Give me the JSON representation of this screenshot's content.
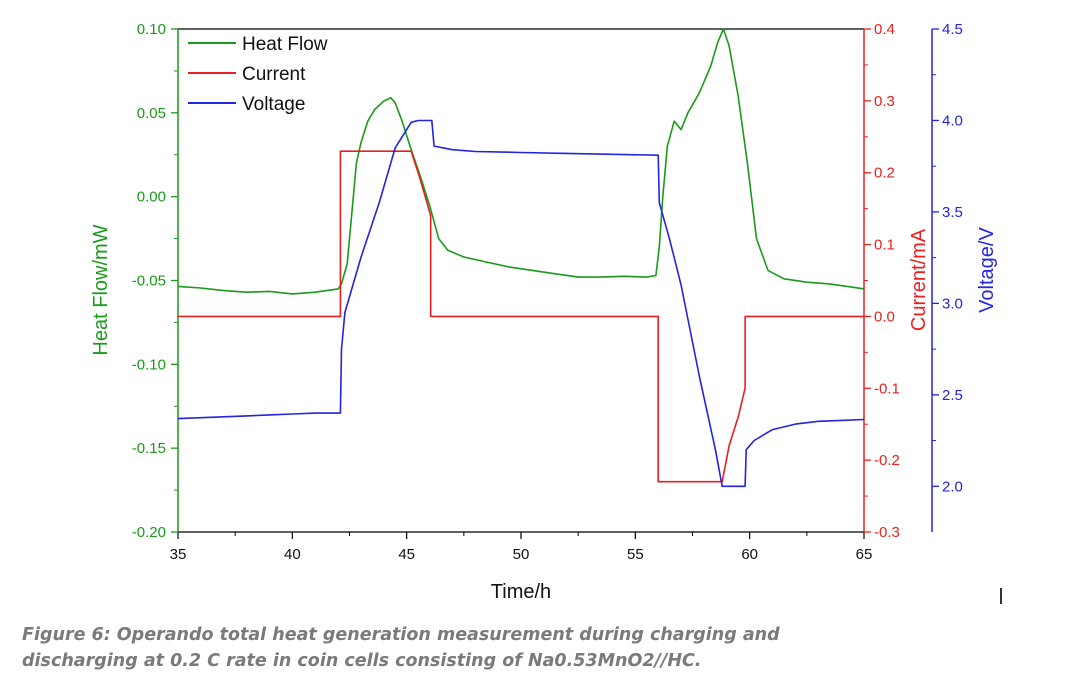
{
  "chart_data": {
    "type": "line",
    "xlabel": "Time/h",
    "x_ticks": [
      "35",
      "40",
      "45",
      "50",
      "55",
      "60",
      "65"
    ],
    "xlim": [
      35,
      65
    ],
    "grid": false,
    "legend_position": "top-left",
    "axes": {
      "left": {
        "label": "Heat Flow/mW",
        "color": "#1a9a1a",
        "lim": [
          -0.2,
          0.1
        ],
        "ticks": [
          "-0.20",
          "-0.15",
          "-0.10",
          "-0.05",
          "0.00",
          "0.05",
          "0.10"
        ]
      },
      "right1": {
        "label": "Current/mA",
        "color": "#e82020",
        "lim": [
          -0.3,
          0.4
        ],
        "ticks": [
          "-0.3",
          "-0.2",
          "-0.1",
          "0.0",
          "0.1",
          "0.2",
          "0.3",
          "0.4"
        ]
      },
      "right2": {
        "label": "Voltage/V",
        "color": "#2323e0",
        "lim": [
          1.75,
          4.5
        ],
        "ticks": [
          "2.0",
          "2.5",
          "3.0",
          "3.5",
          "4.0",
          "4.5"
        ]
      }
    },
    "series": [
      {
        "name": "Heat Flow",
        "axis": "left",
        "color": "#1a9a1a",
        "points": [
          [
            35,
            -0.0535
          ],
          [
            36,
            -0.0545
          ],
          [
            37,
            -0.056
          ],
          [
            38,
            -0.057
          ],
          [
            39,
            -0.0565
          ],
          [
            40,
            -0.058
          ],
          [
            41,
            -0.057
          ],
          [
            42,
            -0.055
          ],
          [
            42.15,
            -0.052
          ],
          [
            42.4,
            -0.04
          ],
          [
            42.6,
            -0.01
          ],
          [
            42.8,
            0.02
          ],
          [
            43,
            0.032
          ],
          [
            43.3,
            0.045
          ],
          [
            43.6,
            0.052
          ],
          [
            44,
            0.057
          ],
          [
            44.3,
            0.059
          ],
          [
            44.5,
            0.056
          ],
          [
            44.8,
            0.045
          ],
          [
            45.2,
            0.028
          ],
          [
            45.6,
            0.012
          ],
          [
            46,
            -0.005
          ],
          [
            46.4,
            -0.025
          ],
          [
            46.8,
            -0.032
          ],
          [
            47.5,
            -0.036
          ],
          [
            48.5,
            -0.039
          ],
          [
            49.5,
            -0.042
          ],
          [
            50.5,
            -0.044
          ],
          [
            51.5,
            -0.046
          ],
          [
            52.5,
            -0.048
          ],
          [
            53.5,
            -0.048
          ],
          [
            54.5,
            -0.0475
          ],
          [
            55.5,
            -0.048
          ],
          [
            55.9,
            -0.047
          ],
          [
            56.05,
            -0.03
          ],
          [
            56.2,
            0.0
          ],
          [
            56.4,
            0.03
          ],
          [
            56.7,
            0.045
          ],
          [
            57,
            0.04
          ],
          [
            57.3,
            0.05
          ],
          [
            57.8,
            0.062
          ],
          [
            58.3,
            0.078
          ],
          [
            58.6,
            0.092
          ],
          [
            58.85,
            0.1
          ],
          [
            59.1,
            0.09
          ],
          [
            59.5,
            0.06
          ],
          [
            59.9,
            0.02
          ],
          [
            60.3,
            -0.025
          ],
          [
            60.8,
            -0.044
          ],
          [
            61.5,
            -0.049
          ],
          [
            62.5,
            -0.051
          ],
          [
            63.5,
            -0.052
          ],
          [
            64.5,
            -0.054
          ],
          [
            65,
            -0.055
          ]
        ]
      },
      {
        "name": "Current",
        "axis": "right1",
        "color": "#e82020",
        "points": [
          [
            35,
            0
          ],
          [
            42.1,
            0
          ],
          [
            42.1,
            0.23
          ],
          [
            45.2,
            0.23
          ],
          [
            45.6,
            0.19
          ],
          [
            46.05,
            0.14
          ],
          [
            46.05,
            0
          ],
          [
            56,
            0
          ],
          [
            56,
            -0.23
          ],
          [
            58.8,
            -0.23
          ],
          [
            59.1,
            -0.18
          ],
          [
            59.5,
            -0.14
          ],
          [
            59.8,
            -0.1
          ],
          [
            59.8,
            0
          ],
          [
            65,
            0
          ]
        ]
      },
      {
        "name": "Voltage",
        "axis": "right2",
        "color": "#2323e0",
        "points": [
          [
            35,
            2.37
          ],
          [
            36,
            2.375
          ],
          [
            37,
            2.38
          ],
          [
            38,
            2.385
          ],
          [
            39,
            2.39
          ],
          [
            40,
            2.395
          ],
          [
            41,
            2.4
          ],
          [
            42.1,
            2.4
          ],
          [
            42.15,
            2.75
          ],
          [
            42.3,
            2.95
          ],
          [
            43,
            3.25
          ],
          [
            43.8,
            3.55
          ],
          [
            44.5,
            3.85
          ],
          [
            45.2,
            3.99
          ],
          [
            45.5,
            4.0
          ],
          [
            46.1,
            4.0
          ],
          [
            46.2,
            3.86
          ],
          [
            47,
            3.84
          ],
          [
            48,
            3.83
          ],
          [
            50,
            3.825
          ],
          [
            52,
            3.82
          ],
          [
            54,
            3.815
          ],
          [
            56,
            3.81
          ],
          [
            56.05,
            3.55
          ],
          [
            56.5,
            3.35
          ],
          [
            57,
            3.1
          ],
          [
            57.8,
            2.6
          ],
          [
            58.5,
            2.2
          ],
          [
            58.8,
            2.0
          ],
          [
            59.8,
            2.0
          ],
          [
            59.85,
            2.2
          ],
          [
            60.2,
            2.25
          ],
          [
            61,
            2.31
          ],
          [
            62,
            2.34
          ],
          [
            63,
            2.355
          ],
          [
            64,
            2.36
          ],
          [
            65,
            2.365
          ]
        ]
      }
    ]
  },
  "caption": {
    "line1": "Figure 6: Operando total heat generation measurement during charging and",
    "line2": "discharging at 0.2 C rate in coin cells consisting of Na0.53MnO2//HC."
  }
}
